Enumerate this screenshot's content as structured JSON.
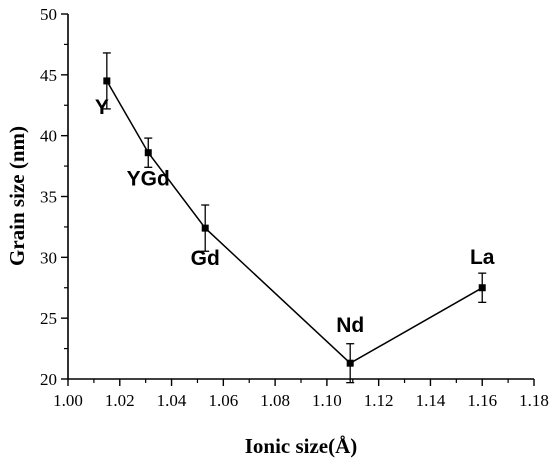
{
  "chart_data": {
    "type": "line",
    "xlabel": "Ionic size(Å)",
    "ylabel": "Grain size (nm)",
    "xlim": [
      1.0,
      1.18
    ],
    "ylim": [
      20,
      50
    ],
    "xticks": [
      "1.00",
      "1.02",
      "1.04",
      "1.06",
      "1.08",
      "1.10",
      "1.12",
      "1.14",
      "1.16",
      "1.18"
    ],
    "yticks": [
      "20",
      "25",
      "30",
      "35",
      "40",
      "45",
      "50"
    ],
    "grid": false,
    "series": [
      {
        "marker": "square",
        "color": "#000000",
        "points": [
          {
            "label": "Y",
            "x": 1.015,
            "y": 44.5,
            "err": 2.3
          },
          {
            "label": "YGd",
            "x": 1.031,
            "y": 38.6,
            "err": 1.2
          },
          {
            "label": "Gd",
            "x": 1.053,
            "y": 32.4,
            "err": 1.9
          },
          {
            "label": "Nd",
            "x": 1.109,
            "y": 21.3,
            "err": 1.6
          },
          {
            "label": "La",
            "x": 1.16,
            "y": 27.5,
            "err": 1.2
          }
        ]
      }
    ]
  }
}
